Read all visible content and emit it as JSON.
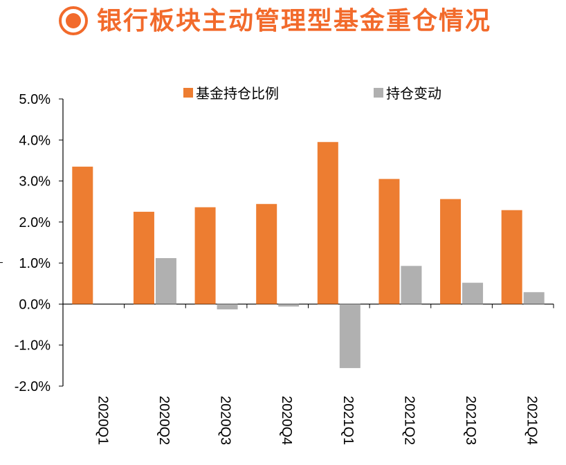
{
  "title": "银行板块主动管理型基金重仓情况",
  "colors": {
    "accent": "#F26A2B",
    "series_holding": "#ED7D31",
    "series_change": "#B0B0B0"
  },
  "chart_data": {
    "type": "bar",
    "categories": [
      "2020Q1",
      "2020Q2",
      "2020Q3",
      "2020Q4",
      "2021Q1",
      "2021Q2",
      "2021Q3",
      "2021Q4"
    ],
    "series": [
      {
        "name": "基金持仓比例",
        "values": [
          3.35,
          2.25,
          2.36,
          2.44,
          3.95,
          3.05,
          2.56,
          2.29
        ]
      },
      {
        "name": "持仓变动",
        "values": [
          0.0,
          1.12,
          -0.13,
          -0.06,
          -1.56,
          0.93,
          0.52,
          0.29
        ]
      }
    ],
    "yticks": [
      "5.0%",
      "4.0%",
      "3.0%",
      "2.0%",
      "1.0%",
      "0.0%",
      "-1.0%",
      "-2.0%"
    ],
    "ylim": [
      -2,
      5
    ],
    "legend_position": "top",
    "grid": false
  }
}
